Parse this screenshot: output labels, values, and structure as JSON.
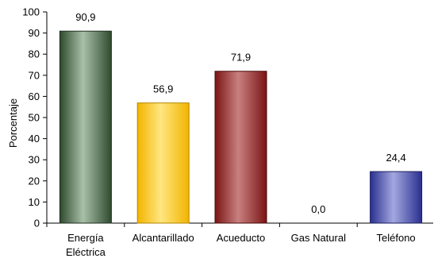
{
  "chart_data": {
    "type": "bar",
    "title": "",
    "xlabel": "",
    "ylabel": "Porcentaje",
    "ylim": [
      0,
      100
    ],
    "yticks": [
      0,
      10,
      20,
      30,
      40,
      50,
      60,
      70,
      80,
      90,
      100
    ],
    "grid": false,
    "legend": "none",
    "categories": [
      [
        "Energía",
        "Eléctrica"
      ],
      [
        "Alcantarillado"
      ],
      [
        "Acueducto"
      ],
      [
        "Gas Natural"
      ],
      [
        "Teléfono"
      ]
    ],
    "values": [
      90.9,
      56.9,
      71.9,
      0.0,
      24.4
    ],
    "value_labels": [
      "90,9",
      "56,9",
      "71,9",
      "0,0",
      "24,4"
    ],
    "bar_colors": [
      {
        "dark": "#2f4a2f",
        "light": "#a9c0a8",
        "stroke": "#1e2e1e"
      },
      {
        "dark": "#f2b400",
        "light": "#ffe680",
        "stroke": "#b38600"
      },
      {
        "dark": "#7a1414",
        "light": "#c98080",
        "stroke": "#4a0b0b"
      },
      {
        "dark": "#808080",
        "light": "#d0d0d0",
        "stroke": "#606060"
      },
      {
        "dark": "#2a2f8f",
        "light": "#a3a8e0",
        "stroke": "#1a1d5e"
      }
    ]
  }
}
